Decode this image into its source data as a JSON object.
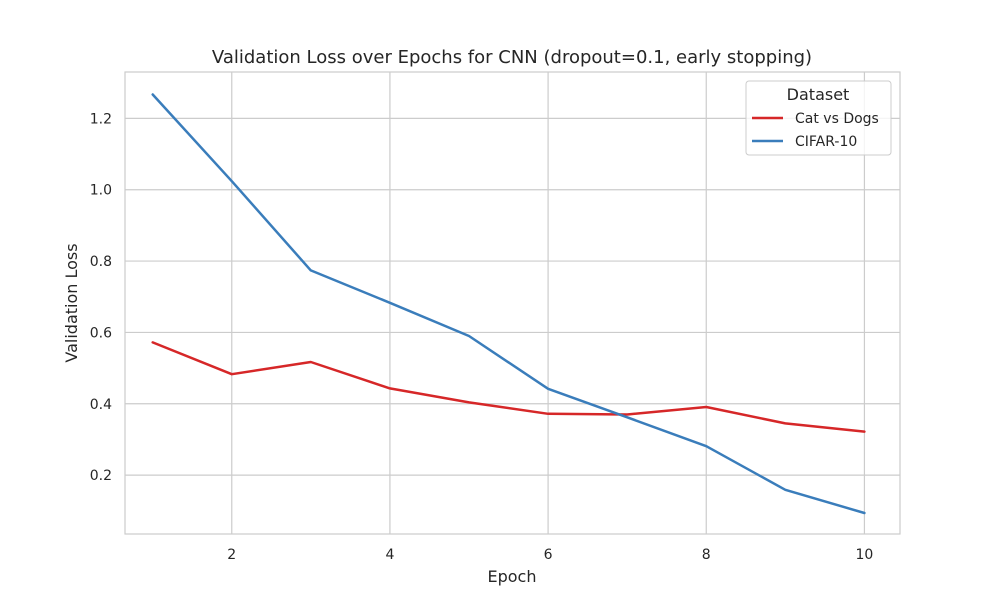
{
  "chart_data": {
    "type": "line",
    "title": "Validation Loss over Epochs for CNN (dropout=0.1, early stopping)",
    "xlabel": "Epoch",
    "ylabel": "Validation Loss",
    "x": [
      1,
      2,
      3,
      4,
      5,
      6,
      7,
      8,
      9,
      10
    ],
    "xlim": [
      0.65,
      10.45
    ],
    "ylim": [
      0.035,
      1.33
    ],
    "xticks": [
      2,
      4,
      6,
      8,
      10
    ],
    "yticks": [
      0.2,
      0.4,
      0.6,
      0.8,
      1.0,
      1.2
    ],
    "xtick_labels": [
      "2",
      "4",
      "6",
      "8",
      "10"
    ],
    "ytick_labels": [
      "0.2",
      "0.4",
      "0.6",
      "0.8",
      "1.0",
      "1.2"
    ],
    "grid": true,
    "legend": {
      "title": "Dataset",
      "position": "top-right"
    },
    "series": [
      {
        "name": "Cat vs Dogs",
        "color": "#d62728",
        "values": [
          0.572,
          0.483,
          0.517,
          0.443,
          0.404,
          0.372,
          0.37,
          0.391,
          0.345,
          0.322
        ]
      },
      {
        "name": "CIFAR-10",
        "color": "#3a7dbb",
        "values": [
          1.267,
          1.024,
          0.774,
          0.683,
          0.59,
          0.442,
          0.362,
          0.281,
          0.159,
          0.094
        ]
      }
    ]
  }
}
